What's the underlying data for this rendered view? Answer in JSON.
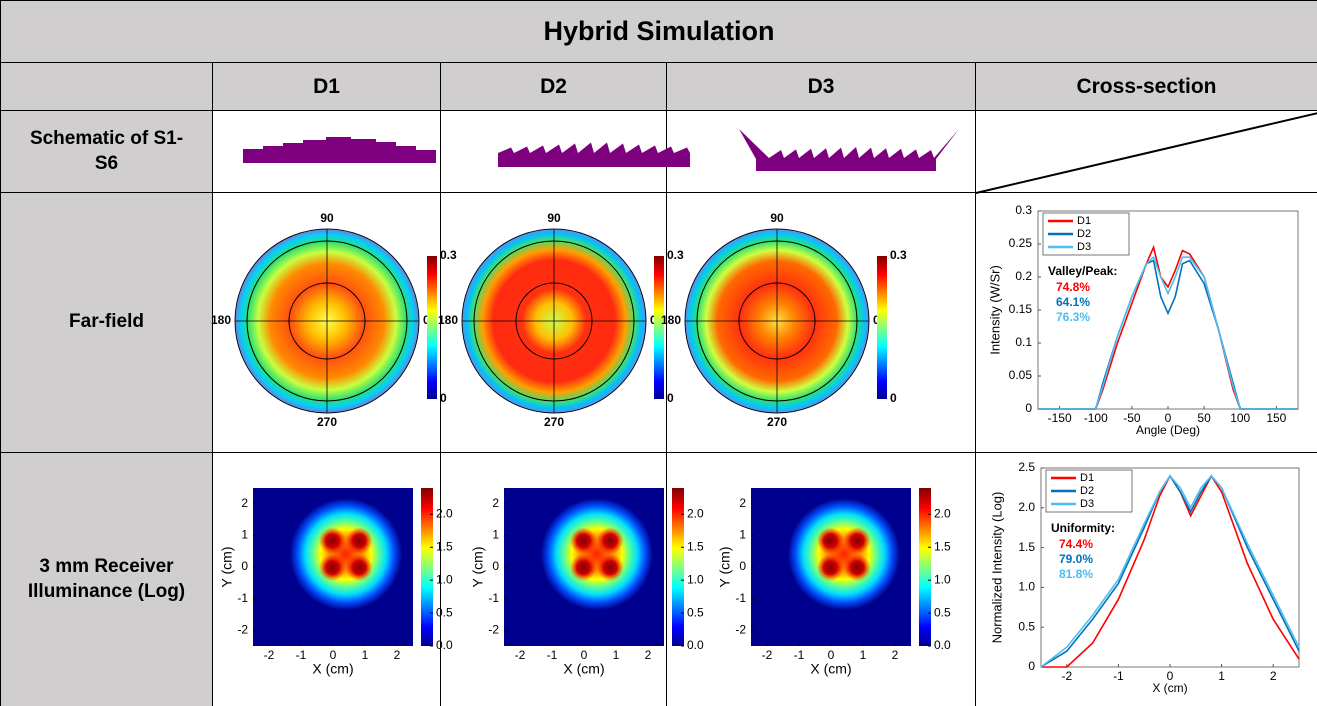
{
  "table": {
    "title": "Hybrid Simulation",
    "columns": [
      "D1",
      "D2",
      "D3",
      "Cross-section"
    ],
    "rows": [
      "Schematic of S1-S6",
      "Far-field",
      "3 mm Receiver Illuminance (Log)"
    ]
  },
  "far_field_map": {
    "angle_labels": [
      90,
      180,
      0,
      270
    ],
    "colorbar_lim": [
      0,
      0.3
    ],
    "colorbar_ticks": [
      0,
      0.3
    ]
  },
  "illuminance_map": {
    "xlabel": "X (cm)",
    "ylabel": "Y (cm)",
    "xlim": [
      -2.5,
      2.5
    ],
    "ylim": [
      -2.5,
      2.5
    ],
    "xticks": [
      -2,
      -1,
      0,
      1,
      2
    ],
    "yticks": [
      -2,
      -1,
      0,
      1,
      2
    ],
    "colorbar_lim": [
      0,
      2.4
    ],
    "colorbar_ticks": [
      {
        "value": 0,
        "label": "0.0"
      },
      0.5,
      {
        "value": 1,
        "label": "1.0"
      },
      1.5,
      {
        "value": 2,
        "label": "2.0"
      }
    ]
  },
  "chart_data": [
    {
      "type": "line",
      "xlabel": "Angle (Deg)",
      "ylabel": "Intensity (W/Sr)",
      "annotation": "Valley/Peak:",
      "x": [
        -180,
        -100,
        -90,
        -70,
        -50,
        -30,
        -20,
        -10,
        0,
        10,
        20,
        30,
        50,
        70,
        90,
        100,
        180
      ],
      "series": [
        {
          "name": "D1",
          "color": "#ff0000",
          "metric_label": "74.8%",
          "values": [
            0,
            0,
            0.03,
            0.1,
            0.16,
            0.22,
            0.245,
            0.2,
            0.185,
            0.21,
            0.24,
            0.235,
            0.2,
            0.12,
            0.03,
            0,
            0
          ]
        },
        {
          "name": "D2",
          "color": "#0072bd",
          "metric_label": "64.1%",
          "values": [
            0,
            0,
            0.04,
            0.11,
            0.17,
            0.22,
            0.225,
            0.17,
            0.145,
            0.17,
            0.22,
            0.225,
            0.19,
            0.12,
            0.04,
            0,
            0
          ]
        },
        {
          "name": "D3",
          "color": "#4dbeee",
          "metric_label": "76.3%",
          "values": [
            0,
            0,
            0.035,
            0.11,
            0.17,
            0.22,
            0.23,
            0.2,
            0.175,
            0.2,
            0.23,
            0.23,
            0.2,
            0.12,
            0.035,
            0,
            0
          ]
        }
      ],
      "xlim": [
        -180,
        180
      ],
      "ylim": [
        0,
        0.3
      ],
      "xticks": [
        -150,
        -100,
        -50,
        0,
        50,
        100,
        150
      ],
      "yticks": [
        0,
        0.05,
        0.1,
        0.15,
        0.2,
        0.25,
        0.3
      ]
    },
    {
      "type": "line",
      "xlabel": "X (cm)",
      "ylabel": "Normalized Intensity (Log)",
      "annotation": "Uniformity:",
      "x": [
        -2.5,
        -2,
        -1.5,
        -1,
        -0.5,
        -0.2,
        0,
        0.2,
        0.4,
        0.6,
        0.8,
        1,
        1.5,
        2,
        2.5
      ],
      "series": [
        {
          "name": "D1",
          "color": "#ff0000",
          "metric_label": "74.4%",
          "values": [
            0,
            0,
            0.3,
            0.85,
            1.6,
            2.15,
            2.4,
            2.2,
            1.9,
            2.15,
            2.4,
            2.2,
            1.3,
            0.6,
            0.1
          ]
        },
        {
          "name": "D2",
          "color": "#0072bd",
          "metric_label": "79.0%",
          "values": [
            0,
            0.2,
            0.6,
            1.05,
            1.75,
            2.2,
            2.4,
            2.2,
            1.95,
            2.2,
            2.4,
            2.25,
            1.5,
            0.85,
            0.2
          ]
        },
        {
          "name": "D3",
          "color": "#4dbeee",
          "metric_label": "81.8%",
          "values": [
            0,
            0.25,
            0.65,
            1.1,
            1.8,
            2.2,
            2.4,
            2.25,
            2.0,
            2.25,
            2.4,
            2.25,
            1.55,
            0.9,
            0.25
          ]
        }
      ],
      "xlim": [
        -2.5,
        2.5
      ],
      "ylim": [
        0,
        2.5
      ],
      "xticks": [
        -2,
        -1,
        0,
        1,
        2
      ],
      "yticks": [
        0,
        0.5,
        {
          "value": 1,
          "label": "1.0"
        },
        1.5,
        {
          "value": 2,
          "label": "2.0"
        },
        2.5
      ]
    }
  ]
}
